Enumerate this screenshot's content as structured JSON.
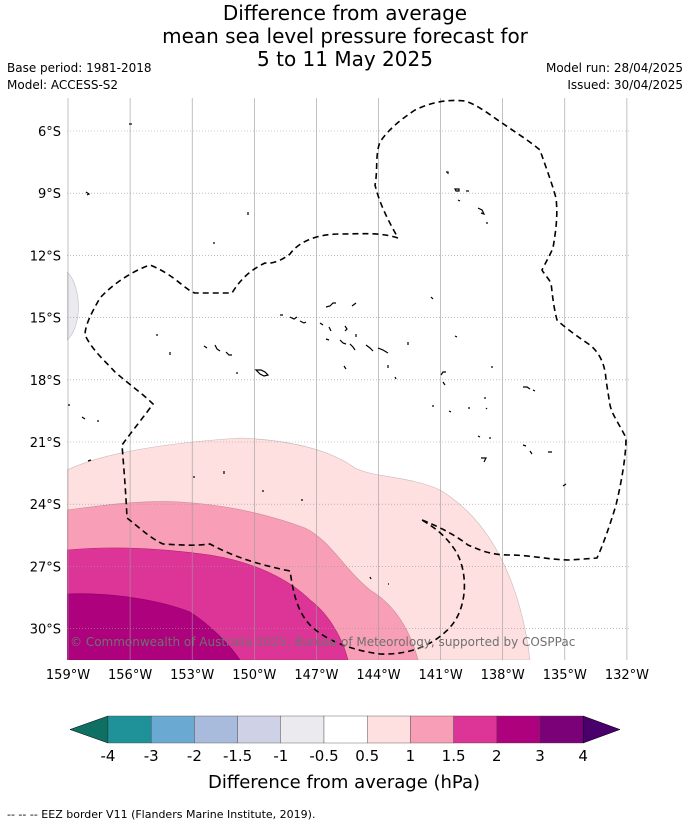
{
  "title_lines": [
    "Difference from average",
    "mean sea level pressure forecast for",
    "5 to 11 May 2025"
  ],
  "base_period": "Base period: 1981-2018",
  "model": "Model: ACCESS-S2",
  "model_run": "Model run: 28/04/2025",
  "issued": "Issued: 30/04/2025",
  "copyright": "© Commonwealth of Australia 2025, Bureau of Meteorology, supported by COSPPac",
  "lat_labels": [
    "6°S",
    "9°S",
    "12°S",
    "15°S",
    "18°S",
    "21°S",
    "24°S",
    "27°S",
    "30°S"
  ],
  "lon_labels": [
    "159°W",
    "156°W",
    "153°W",
    "150°W",
    "147°W",
    "144°W",
    "141°W",
    "138°W",
    "135°W",
    "132°W"
  ],
  "colorbar": {
    "title": "Difference from average (hPa)",
    "ticks": [
      "-4",
      "-3",
      "-2",
      "-1.5",
      "-1",
      "-0.5",
      "0.5",
      "1",
      "1.5",
      "2",
      "3",
      "4"
    ],
    "colors": [
      "#0d7063",
      "#1e9199",
      "#6aaad2",
      "#a8bbdd",
      "#cfd1e6",
      "#ebeaef",
      "#ffffff",
      "#fde0df",
      "#f89fb7",
      "#dd3497",
      "#ae017e",
      "#7a0177",
      "#49006a"
    ]
  },
  "footer": "-- -- -- EEZ border V11 (Flanders Marine Institute, 2019)."
}
